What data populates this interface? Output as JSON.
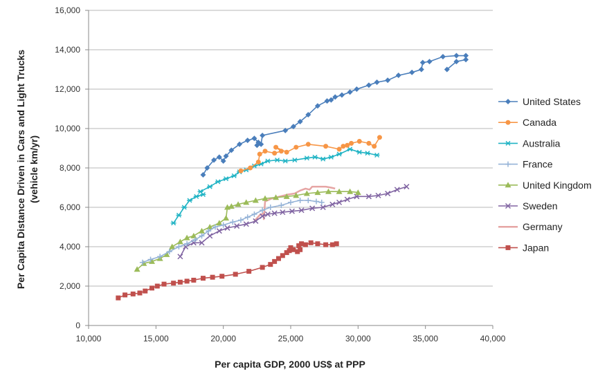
{
  "chart_data": {
    "type": "line",
    "xlabel": "Per capita GDP, 2000 US$ at PPP",
    "ylabel_line1": "Per Capita Distance Driven in Cars and Light Trucks",
    "ylabel_line2": "(vehicle km/yr)",
    "xlim": [
      10000,
      40000
    ],
    "ylim": [
      0,
      16000
    ],
    "x_ticks": [
      10000,
      15000,
      20000,
      25000,
      30000,
      35000,
      40000
    ],
    "x_tick_labels": [
      "10,000",
      "15,000",
      "20,000",
      "25,000",
      "30,000",
      "35,000",
      "40,000"
    ],
    "y_ticks": [
      0,
      2000,
      4000,
      6000,
      8000,
      10000,
      12000,
      14000,
      16000
    ],
    "y_tick_labels": [
      "0",
      "2,000",
      "4,000",
      "6,000",
      "8,000",
      "10,000",
      "12,000",
      "14,000",
      "16,000"
    ],
    "grid": "horizontal",
    "legend_position": "right",
    "series": [
      {
        "name": "United States",
        "color": "#4a7ebb",
        "marker": "diamond",
        "points": [
          [
            18500,
            7650
          ],
          [
            18800,
            8000
          ],
          [
            19300,
            8400
          ],
          [
            19700,
            8550
          ],
          [
            20000,
            8350
          ],
          [
            20200,
            8600
          ],
          [
            20600,
            8900
          ],
          [
            21200,
            9200
          ],
          [
            21800,
            9400
          ],
          [
            22300,
            9500
          ],
          [
            22600,
            9300
          ],
          [
            22500,
            9150
          ],
          [
            22800,
            9200
          ],
          [
            22900,
            9650
          ],
          [
            24600,
            9900
          ],
          [
            25200,
            10100
          ],
          [
            25700,
            10350
          ],
          [
            26300,
            10700
          ],
          [
            27000,
            11150
          ],
          [
            27700,
            11400
          ],
          [
            28000,
            11450
          ],
          [
            28300,
            11600
          ],
          [
            28800,
            11700
          ],
          [
            29400,
            11850
          ],
          [
            29900,
            12000
          ],
          [
            30800,
            12200
          ],
          [
            31400,
            12350
          ],
          [
            32200,
            12450
          ],
          [
            33000,
            12700
          ],
          [
            34000,
            12850
          ],
          [
            34700,
            13000
          ],
          [
            34800,
            13350
          ],
          [
            35300,
            13400
          ],
          [
            36300,
            13650
          ],
          [
            37300,
            13700
          ],
          [
            38000,
            13700
          ],
          [
            38000,
            13500
          ],
          [
            37300,
            13400
          ],
          [
            36600,
            13000
          ]
        ]
      },
      {
        "name": "Canada",
        "color": "#f79646",
        "marker": "circle",
        "points": [
          [
            21300,
            7850
          ],
          [
            22000,
            8000
          ],
          [
            22600,
            8300
          ],
          [
            22700,
            8700
          ],
          [
            23100,
            8850
          ],
          [
            23800,
            8750
          ],
          [
            24300,
            8850
          ],
          [
            23900,
            9050
          ],
          [
            24700,
            8800
          ],
          [
            25400,
            9050
          ],
          [
            26300,
            9200
          ],
          [
            27600,
            9100
          ],
          [
            28600,
            8950
          ],
          [
            28900,
            9100
          ],
          [
            29200,
            9150
          ],
          [
            29500,
            9250
          ],
          [
            30100,
            9350
          ],
          [
            30800,
            9250
          ],
          [
            31200,
            9100
          ],
          [
            31600,
            9550
          ]
        ]
      },
      {
        "name": "Australia",
        "color": "#1fb3c4",
        "marker": "star",
        "points": [
          [
            16300,
            5200
          ],
          [
            16700,
            5600
          ],
          [
            17100,
            6000
          ],
          [
            17500,
            6350
          ],
          [
            18000,
            6550
          ],
          [
            18500,
            6650
          ],
          [
            18300,
            6800
          ],
          [
            19000,
            7050
          ],
          [
            19600,
            7300
          ],
          [
            20200,
            7450
          ],
          [
            20800,
            7600
          ],
          [
            21200,
            7800
          ],
          [
            21700,
            7900
          ],
          [
            22300,
            8100
          ],
          [
            22800,
            8200
          ],
          [
            23300,
            8350
          ],
          [
            24000,
            8400
          ],
          [
            24600,
            8350
          ],
          [
            25300,
            8400
          ],
          [
            26200,
            8500
          ],
          [
            26800,
            8550
          ],
          [
            27400,
            8450
          ],
          [
            28000,
            8550
          ],
          [
            28600,
            8700
          ],
          [
            29400,
            8950
          ],
          [
            30100,
            8800
          ],
          [
            30700,
            8750
          ],
          [
            31400,
            8650
          ]
        ]
      },
      {
        "name": "France",
        "color": "#95b3d7",
        "marker": "plus",
        "points": [
          [
            14000,
            3200
          ],
          [
            14600,
            3350
          ],
          [
            15300,
            3500
          ],
          [
            16000,
            3750
          ],
          [
            16700,
            4000
          ],
          [
            17300,
            4150
          ],
          [
            17900,
            4350
          ],
          [
            18400,
            4550
          ],
          [
            18900,
            4800
          ],
          [
            19400,
            5000
          ],
          [
            20000,
            5100
          ],
          [
            20700,
            5250
          ],
          [
            21300,
            5350
          ],
          [
            21800,
            5500
          ],
          [
            22300,
            5650
          ],
          [
            22900,
            5850
          ],
          [
            23500,
            6000
          ],
          [
            24300,
            6100
          ],
          [
            25000,
            6250
          ],
          [
            25700,
            6350
          ],
          [
            26300,
            6350
          ],
          [
            26900,
            6300
          ],
          [
            27300,
            6250
          ]
        ]
      },
      {
        "name": "United Kingdom",
        "color": "#9bbb59",
        "marker": "triangle",
        "points": [
          [
            13600,
            2850
          ],
          [
            14100,
            3150
          ],
          [
            14700,
            3250
          ],
          [
            15300,
            3400
          ],
          [
            15800,
            3600
          ],
          [
            16200,
            4000
          ],
          [
            16800,
            4250
          ],
          [
            17300,
            4450
          ],
          [
            17800,
            4550
          ],
          [
            18400,
            4800
          ],
          [
            19000,
            5000
          ],
          [
            19700,
            5200
          ],
          [
            20200,
            5450
          ],
          [
            20300,
            6000
          ],
          [
            20600,
            6050
          ],
          [
            21100,
            6150
          ],
          [
            21700,
            6250
          ],
          [
            22400,
            6350
          ],
          [
            23100,
            6450
          ],
          [
            23900,
            6500
          ],
          [
            24700,
            6550
          ],
          [
            25400,
            6600
          ],
          [
            26200,
            6700
          ],
          [
            27000,
            6750
          ],
          [
            27800,
            6800
          ],
          [
            28600,
            6800
          ],
          [
            29400,
            6800
          ],
          [
            30000,
            6750
          ]
        ]
      },
      {
        "name": "Sweden",
        "color": "#8064a2",
        "marker": "x",
        "points": [
          [
            16800,
            3500
          ],
          [
            17200,
            4000
          ],
          [
            17800,
            4200
          ],
          [
            18400,
            4200
          ],
          [
            19000,
            4550
          ],
          [
            19700,
            4800
          ],
          [
            20300,
            4950
          ],
          [
            21000,
            5050
          ],
          [
            21700,
            5150
          ],
          [
            22400,
            5300
          ],
          [
            22900,
            5550
          ],
          [
            23300,
            5650
          ],
          [
            23800,
            5700
          ],
          [
            24400,
            5750
          ],
          [
            25100,
            5800
          ],
          [
            25800,
            5850
          ],
          [
            26600,
            5950
          ],
          [
            27400,
            6000
          ],
          [
            28100,
            6150
          ],
          [
            28600,
            6250
          ],
          [
            29200,
            6400
          ],
          [
            29900,
            6550
          ],
          [
            30800,
            6550
          ],
          [
            31500,
            6600
          ],
          [
            32200,
            6700
          ],
          [
            32900,
            6900
          ],
          [
            33600,
            7050
          ]
        ]
      },
      {
        "name": "Germany",
        "color": "#e6a5a4",
        "marker": "none",
        "points": [
          [
            22300,
            5300
          ],
          [
            22700,
            5600
          ],
          [
            23000,
            5700
          ],
          [
            23000,
            5400
          ],
          [
            23100,
            6300
          ],
          [
            23600,
            6450
          ],
          [
            24200,
            6550
          ],
          [
            24800,
            6650
          ],
          [
            25300,
            6700
          ],
          [
            25700,
            6850
          ],
          [
            26100,
            6950
          ],
          [
            26400,
            6900
          ],
          [
            26600,
            7050
          ],
          [
            27100,
            7050
          ],
          [
            27600,
            7050
          ],
          [
            28000,
            7000
          ],
          [
            28300,
            6950
          ]
        ]
      },
      {
        "name": "Japan",
        "color": "#c0504d",
        "marker": "square",
        "points": [
          [
            12200,
            1400
          ],
          [
            12700,
            1550
          ],
          [
            13300,
            1600
          ],
          [
            13800,
            1650
          ],
          [
            14200,
            1750
          ],
          [
            14700,
            1900
          ],
          [
            15100,
            2000
          ],
          [
            15600,
            2100
          ],
          [
            16300,
            2150
          ],
          [
            16800,
            2200
          ],
          [
            17300,
            2250
          ],
          [
            17800,
            2300
          ],
          [
            18500,
            2400
          ],
          [
            19200,
            2450
          ],
          [
            19900,
            2500
          ],
          [
            20900,
            2600
          ],
          [
            21900,
            2750
          ],
          [
            22900,
            2950
          ],
          [
            23500,
            3100
          ],
          [
            23800,
            3250
          ],
          [
            24100,
            3400
          ],
          [
            24400,
            3550
          ],
          [
            24700,
            3700
          ],
          [
            24900,
            3800
          ],
          [
            25000,
            3950
          ],
          [
            25200,
            3850
          ],
          [
            25500,
            3750
          ],
          [
            25700,
            3850
          ],
          [
            25600,
            4050
          ],
          [
            25800,
            4150
          ],
          [
            26100,
            4100
          ],
          [
            26500,
            4200
          ],
          [
            27000,
            4150
          ],
          [
            27600,
            4100
          ],
          [
            28100,
            4100
          ],
          [
            28400,
            4150
          ]
        ]
      }
    ]
  }
}
